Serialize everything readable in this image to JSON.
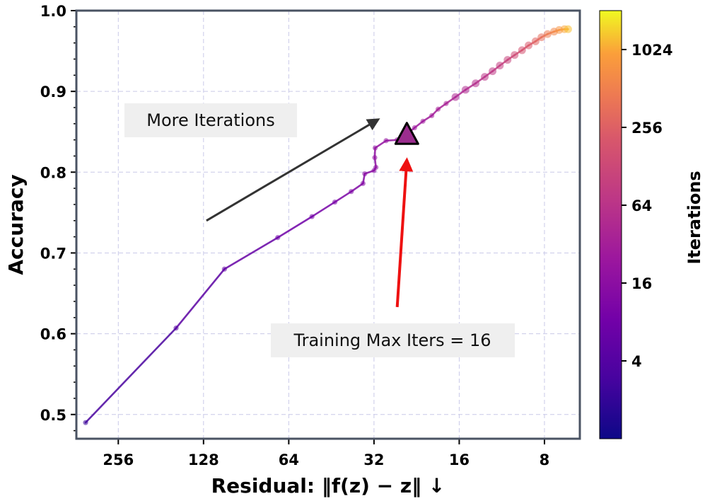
{
  "chart_data": {
    "type": "line",
    "xlabel": "Residual: ‖f(z) − z‖ ↓",
    "ylabel": "Accuracy",
    "x_scale": "log2-reversed",
    "xlim": [
      360,
      6
    ],
    "ylim": [
      0.47,
      1.0
    ],
    "x_ticks": [
      256,
      128,
      64,
      32,
      16,
      8
    ],
    "x_tick_labels": [
      "256",
      "128",
      "64",
      "32",
      "16",
      "8"
    ],
    "y_ticks": [
      0.5,
      0.6,
      0.7,
      0.8,
      0.9,
      1.0
    ],
    "y_tick_labels": [
      "0.5",
      "0.6",
      "0.7",
      "0.8",
      "0.9",
      "1.0"
    ],
    "grid": true,
    "series": [
      {
        "points": [
          {
            "x": 334,
            "y": 0.49,
            "iter": 1
          },
          {
            "x": 160,
            "y": 0.607,
            "iter": 2
          },
          {
            "x": 108,
            "y": 0.68,
            "iter": 3
          },
          {
            "x": 70,
            "y": 0.719,
            "iter": 4
          },
          {
            "x": 53,
            "y": 0.745,
            "iter": 5
          },
          {
            "x": 44,
            "y": 0.763,
            "iter": 6
          },
          {
            "x": 38.5,
            "y": 0.776,
            "iter": 7
          },
          {
            "x": 35,
            "y": 0.786,
            "iter": 8
          },
          {
            "x": 34.5,
            "y": 0.798,
            "iter": 9
          },
          {
            "x": 32,
            "y": 0.802,
            "iter": 10
          },
          {
            "x": 31.5,
            "y": 0.806,
            "iter": 11
          },
          {
            "x": 31.8,
            "y": 0.818,
            "iter": 12
          },
          {
            "x": 31.7,
            "y": 0.83,
            "iter": 13
          },
          {
            "x": 29,
            "y": 0.839,
            "iter": 14
          },
          {
            "x": 26.5,
            "y": 0.84,
            "iter": 15
          },
          {
            "x": 24.5,
            "y": 0.847,
            "iter": 16
          },
          {
            "x": 23,
            "y": 0.855,
            "iter": 18
          },
          {
            "x": 21.5,
            "y": 0.863,
            "iter": 20
          },
          {
            "x": 20,
            "y": 0.87,
            "iter": 22
          },
          {
            "x": 19,
            "y": 0.878,
            "iter": 25
          },
          {
            "x": 17.8,
            "y": 0.885,
            "iter": 28
          },
          {
            "x": 16.5,
            "y": 0.893,
            "iter": 32
          },
          {
            "x": 15.2,
            "y": 0.902,
            "iter": 38
          },
          {
            "x": 14,
            "y": 0.91,
            "iter": 45
          },
          {
            "x": 13,
            "y": 0.918,
            "iter": 55
          },
          {
            "x": 12.2,
            "y": 0.925,
            "iter": 65
          },
          {
            "x": 11.5,
            "y": 0.932,
            "iter": 80
          },
          {
            "x": 10.8,
            "y": 0.939,
            "iter": 100
          },
          {
            "x": 10.2,
            "y": 0.945,
            "iter": 130
          },
          {
            "x": 9.6,
            "y": 0.951,
            "iter": 170
          },
          {
            "x": 9.1,
            "y": 0.957,
            "iter": 220
          },
          {
            "x": 8.6,
            "y": 0.962,
            "iter": 300
          },
          {
            "x": 8.2,
            "y": 0.967,
            "iter": 400
          },
          {
            "x": 7.8,
            "y": 0.971,
            "iter": 550
          },
          {
            "x": 7.4,
            "y": 0.974,
            "iter": 750
          },
          {
            "x": 7.1,
            "y": 0.976,
            "iter": 1000
          },
          {
            "x": 6.8,
            "y": 0.977,
            "iter": 1400
          },
          {
            "x": 6.6,
            "y": 0.977,
            "iter": 1800
          }
        ]
      }
    ],
    "marker": {
      "x": 24.5,
      "y": 0.847,
      "shape": "triangle",
      "color": "#9b2d8e"
    },
    "colorbar": {
      "title": "Iterations",
      "scale": "log2",
      "range": [
        1,
        2048
      ],
      "ticks": [
        4,
        16,
        64,
        256,
        1024
      ],
      "tick_labels": [
        "4",
        "16",
        "64",
        "256",
        "1024"
      ],
      "colormap": "plasma"
    },
    "annotations": [
      {
        "text": "More Iterations",
        "box": true,
        "arrow_color": "#333333",
        "arrow_from": {
          "x": 125,
          "y": 0.74
        },
        "arrow_to": {
          "x": 31,
          "y": 0.865
        }
      },
      {
        "text": "Training Max Iters = 16",
        "box": true,
        "arrow_color": "#ee1111",
        "arrow_from": {
          "x": 26.5,
          "y": 0.633
        },
        "arrow_to": {
          "x": 24.5,
          "y": 0.815
        }
      }
    ]
  }
}
